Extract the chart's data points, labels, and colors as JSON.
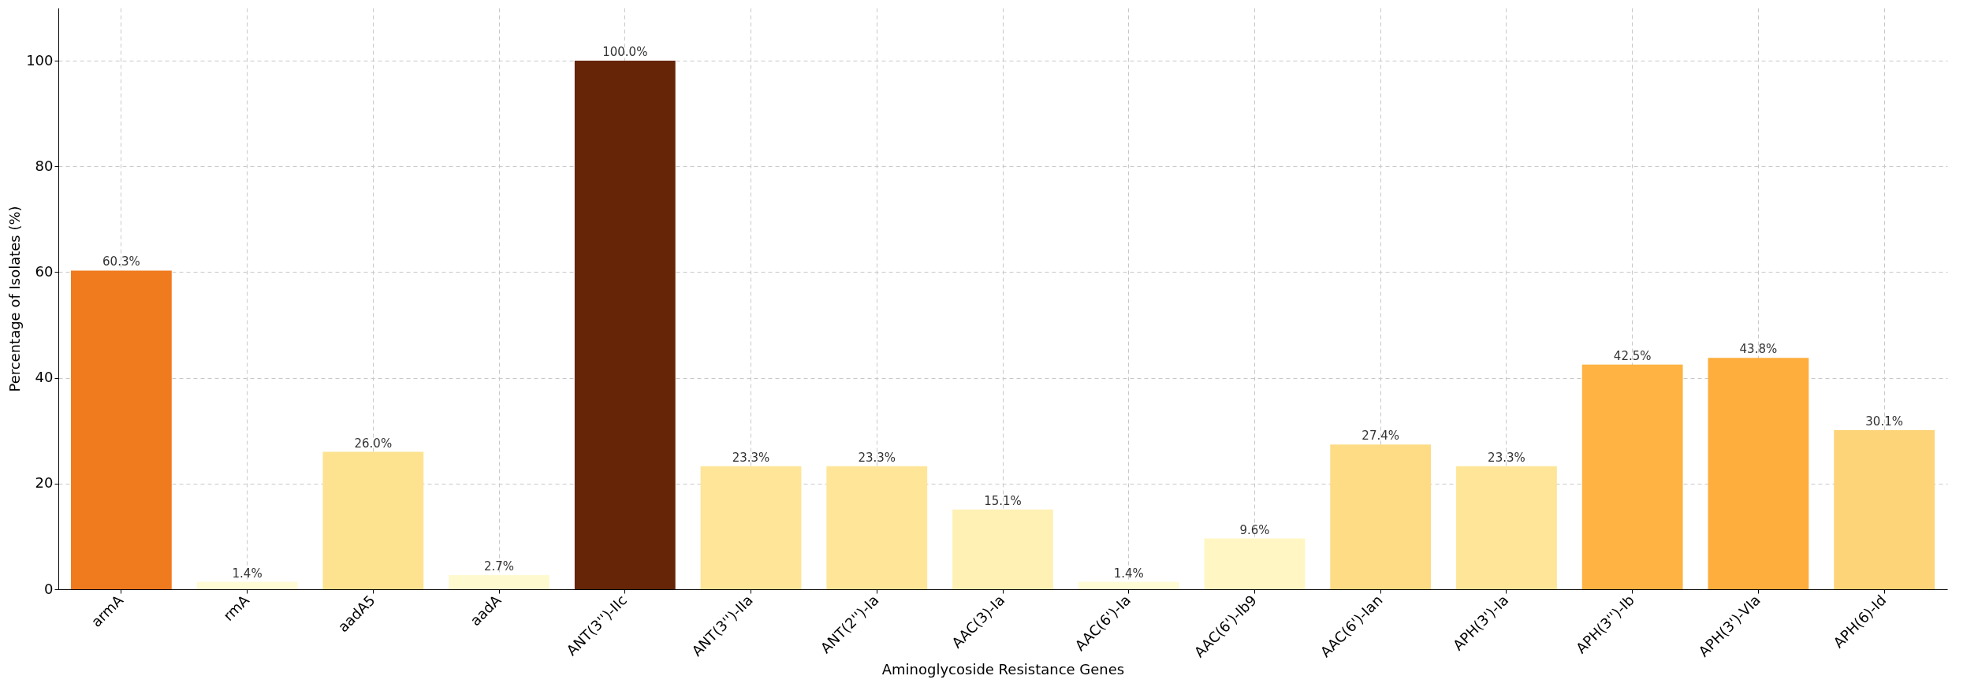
{
  "chart_data": {
    "type": "bar",
    "xlabel": "Aminoglycoside Resistance Genes",
    "ylabel": "Percentage of Isolates (%)",
    "categories": [
      "armA",
      "rmA",
      "aadA5",
      "aadA",
      "ANT(3'')-IIc",
      "ANT(3'')-IIa",
      "ANT(2'')-Ia",
      "AAC(3)-Ia",
      "AAC(6')-Ia",
      "AAC(6')-Ib9",
      "AAC(6')-Ian",
      "APH(3')-Ia",
      "APH(3'')-Ib",
      "APH(3')-VIa",
      "APH(6)-Id"
    ],
    "values": [
      60.3,
      1.4,
      26.0,
      2.7,
      100.0,
      23.3,
      23.3,
      15.1,
      1.4,
      9.6,
      27.4,
      23.3,
      42.5,
      43.8,
      30.1
    ],
    "value_labels": [
      "60.3%",
      "1.4%",
      "26.0%",
      "2.7%",
      "100.0%",
      "23.3%",
      "23.3%",
      "15.1%",
      "1.4%",
      "9.6%",
      "27.4%",
      "23.3%",
      "42.5%",
      "43.8%",
      "30.1%"
    ],
    "colors": [
      "#f07a1e",
      "#fffbd5",
      "#fde290",
      "#fff9d0",
      "#662506",
      "#fee597",
      "#fee597",
      "#fff0b4",
      "#fffbd5",
      "#fff6c3",
      "#fedb85",
      "#fee597",
      "#feb342",
      "#feae3d",
      "#fed478"
    ],
    "ylim": [
      0,
      110
    ],
    "yticks": [
      0,
      20,
      40,
      60,
      80,
      100
    ],
    "grid": true,
    "legend": false
  }
}
